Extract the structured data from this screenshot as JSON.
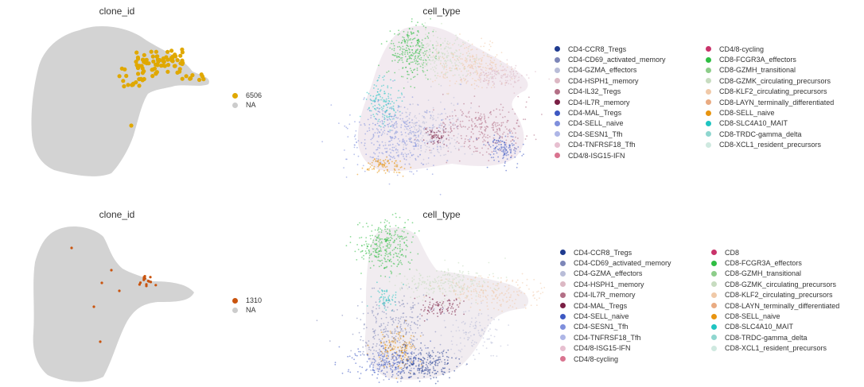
{
  "panels": {
    "top_left": {
      "title": "clone_id"
    },
    "top_right": {
      "title": "cell_type"
    },
    "bottom_left": {
      "title": "clone_id"
    },
    "bottom_right": {
      "title": "cell_type"
    }
  },
  "chart_data": [
    {
      "type": "scatter",
      "title": "clone_id",
      "legend": [
        {
          "label": "6506",
          "color": "#e0a800"
        },
        {
          "label": "NA",
          "color": "#cccccc"
        }
      ]
    },
    {
      "type": "scatter",
      "title": "cell_type",
      "legend_col1": [
        {
          "label": "CD4-CCR8_Tregs",
          "color": "#1f3b8f"
        },
        {
          "label": "CD4-CD69_activated_memory",
          "color": "#7d86b8"
        },
        {
          "label": "CD4-GZMA_effectors",
          "color": "#b9bdd8"
        },
        {
          "label": "CD4-HSPH1_memory",
          "color": "#dcb8c4"
        },
        {
          "label": "CD4-IL32_Tregs",
          "color": "#b36f86"
        },
        {
          "label": "CD4-IL7R_memory",
          "color": "#7a1f44"
        },
        {
          "label": "CD4-MAL_Tregs",
          "color": "#3d58c2"
        },
        {
          "label": "CD4-SELL_naive",
          "color": "#7f8fdc"
        },
        {
          "label": "CD4-SESN1_Tfh",
          "color": "#aeb6e6"
        },
        {
          "label": "CD4-TNFRSF18_Tfh",
          "color": "#e7bfd0"
        },
        {
          "label": "CD4/8-ISG15-IFN",
          "color": "#d9738f"
        }
      ],
      "legend_col2": [
        {
          "label": "CD4/8-cycling",
          "color": "#c9336a"
        },
        {
          "label": "CD8-FCGR3A_effectors",
          "color": "#2fbe43"
        },
        {
          "label": "CD8-GZMH_transitional",
          "color": "#8dcd8a"
        },
        {
          "label": "CD8-GZMK_circulating_precursors",
          "color": "#c7dcc0"
        },
        {
          "label": "CD8-KLF2_circulating_precursors",
          "color": "#f0c9a8"
        },
        {
          "label": "CD8-LAYN_terminally_differentiated",
          "color": "#e9ab82"
        },
        {
          "label": "CD8-SELL_naive",
          "color": "#e8940f"
        },
        {
          "label": "CD8-SLC4A10_MAIT",
          "color": "#1fc4c1"
        },
        {
          "label": "CD8-TRDC-gamma_delta",
          "color": "#8fd6cf"
        },
        {
          "label": "CD8-XCL1_resident_precursors",
          "color": "#cfe9e0"
        }
      ]
    },
    {
      "type": "scatter",
      "title": "clone_id",
      "legend": [
        {
          "label": "1310",
          "color": "#c9540e"
        },
        {
          "label": "NA",
          "color": "#cccccc"
        }
      ]
    },
    {
      "type": "scatter",
      "title": "cell_type",
      "legend_col1": [
        {
          "label": "CD4-CCR8_Tregs",
          "color": "#1f3b8f"
        },
        {
          "label": "CD4-CD69_activated_memory",
          "color": "#7d86b8"
        },
        {
          "label": "CD4-GZMA_effectors",
          "color": "#b9bdd8"
        },
        {
          "label": "CD4-HSPH1_memory",
          "color": "#dcb8c4"
        },
        {
          "label": "CD4-IL7R_memory",
          "color": "#b36f86"
        },
        {
          "label": "CD4-MAL_Tregs",
          "color": "#7a1f44"
        },
        {
          "label": "CD4-SELL_naive",
          "color": "#3d58c2"
        },
        {
          "label": "CD4-SESN1_Tfh",
          "color": "#7f8fdc"
        },
        {
          "label": "CD4-TNFRSF18_Tfh",
          "color": "#aeb6e6"
        },
        {
          "label": "CD4/8-ISG15-IFN",
          "color": "#e7bfd0"
        },
        {
          "label": "CD4/8-cycling",
          "color": "#d9738f"
        }
      ],
      "legend_col2": [
        {
          "label": "CD8",
          "color": "#c9336a"
        },
        {
          "label": "CD8-FCGR3A_effectors",
          "color": "#2fbe43"
        },
        {
          "label": "CD8-GZMH_transitional",
          "color": "#8dcd8a"
        },
        {
          "label": "CD8-GZMK_circulating_precursors",
          "color": "#c7dcc0"
        },
        {
          "label": "CD8-KLF2_circulating_precursors",
          "color": "#f0c9a8"
        },
        {
          "label": "CD8-LAYN_terminally_differentiated",
          "color": "#e9ab82"
        },
        {
          "label": "CD8-SELL_naive",
          "color": "#e8940f"
        },
        {
          "label": "CD8-SLC4A10_MAIT",
          "color": "#1fc4c1"
        },
        {
          "label": "CD8-TRDC-gamma_delta",
          "color": "#8fd6cf"
        },
        {
          "label": "CD8-XCL1_resident_precursors",
          "color": "#cfe9e0"
        }
      ]
    }
  ]
}
